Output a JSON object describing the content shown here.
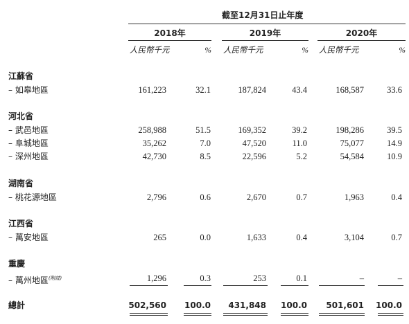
{
  "header": {
    "title": "截至12月31日止年度",
    "years": [
      {
        "year": "2018年",
        "units": [
          "人民幣千元",
          "%"
        ]
      },
      {
        "year": "2019年",
        "units": [
          "人民幣千元",
          "%"
        ]
      },
      {
        "year": "2020年",
        "units": [
          "人民幣千元",
          "%"
        ]
      }
    ]
  },
  "table": {
    "groups": [
      {
        "name": "江蘇省",
        "rows": [
          {
            "label": "– 如皋地區",
            "cells": [
              "161,223",
              "32.1",
              "187,824",
              "43.4",
              "168,587",
              "33.6"
            ]
          }
        ]
      },
      {
        "name": "河北省",
        "rows": [
          {
            "label": "– 武邑地區",
            "cells": [
              "258,988",
              "51.5",
              "169,352",
              "39.2",
              "198,286",
              "39.5"
            ]
          },
          {
            "label": "– 阜城地區",
            "cells": [
              "35,262",
              "7.0",
              "47,520",
              "11.0",
              "75,077",
              "14.9"
            ]
          },
          {
            "label": "– 深州地區",
            "cells": [
              "42,730",
              "8.5",
              "22,596",
              "5.2",
              "54,584",
              "10.9"
            ]
          }
        ]
      },
      {
        "name": "湖南省",
        "rows": [
          {
            "label": "– 桃花源地區",
            "cells": [
              "2,796",
              "0.6",
              "2,670",
              "0.7",
              "1,963",
              "0.4"
            ]
          }
        ]
      },
      {
        "name": "江西省",
        "rows": [
          {
            "label": "– 萬安地區",
            "cells": [
              "265",
              "0.0",
              "1,633",
              "0.4",
              "3,104",
              "0.7"
            ]
          }
        ]
      },
      {
        "name": "重慶",
        "rows": [
          {
            "label": "– 萬州地區",
            "note": "(附註)",
            "cells": [
              "1,296",
              "0.3",
              "253",
              "0.1",
              "–",
              "–"
            ]
          }
        ]
      }
    ],
    "total": {
      "label": "總計",
      "cells": [
        "502,560",
        "100.0",
        "431,848",
        "100.0",
        "501,601",
        "100.0"
      ]
    }
  }
}
